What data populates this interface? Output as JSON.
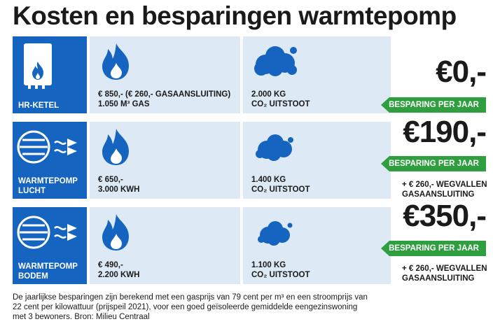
{
  "title": "Kosten en besparingen warmtepomp",
  "rows": [
    {
      "system_label_lines": [
        "HR-KETEL"
      ],
      "cost_lines": [
        "€ 850,- (€ 260,- GASAANSLUITING)",
        "1.050 M³ GAS"
      ],
      "co2_lines": [
        "2.000 KG",
        "CO₂ UITSTOOT"
      ],
      "saving_amount": "€0,-",
      "saving_label": "BESPARING PER JAAR",
      "extra_lines": []
    },
    {
      "system_label_lines": [
        "WARMTEPOMP",
        "LUCHT"
      ],
      "cost_lines": [
        "€ 650,-",
        "3.000 KWH"
      ],
      "co2_lines": [
        "1.400 KG",
        "CO₂ UITSTOOT"
      ],
      "saving_amount": "€190,-",
      "saving_label": "BESPARING PER JAAR",
      "extra_lines": [
        "+ € 260,-  WEGVALLEN",
        "GASAANSLUITING"
      ]
    },
    {
      "system_label_lines": [
        "WARMTEPOMP",
        "BODEM"
      ],
      "cost_lines": [
        "€ 490,-",
        "2.200 KWH"
      ],
      "co2_lines": [
        "1.100 KG",
        "CO₂ UITSTOOT"
      ],
      "saving_amount": "€350,-",
      "saving_label": "BESPARING PER JAAR",
      "extra_lines": [
        "+ € 260,-  WEGVALLEN",
        "GASAANSLUITING"
      ]
    }
  ],
  "footnote_lines": [
    "De jaarlijkse besparingen zijn berekend met een gasprijs van 79 cent per m³ en een stroomprijs van",
    "22 cent per kilowattuur (prijspeil 2021), voor een goed geïsoleerde gemiddelde eengezinswoning",
    "met 3 bewoners. Bron: Milieu Centraal"
  ],
  "icons": {
    "boiler": "boiler-icon",
    "heatpump": "heat-pump-icon",
    "flame": "flame-icon",
    "cloud": "co2-cloud-icon"
  },
  "colors": {
    "blue": "#1565c0",
    "light_blue": "#dde9f5",
    "green": "#2e9e3f"
  }
}
